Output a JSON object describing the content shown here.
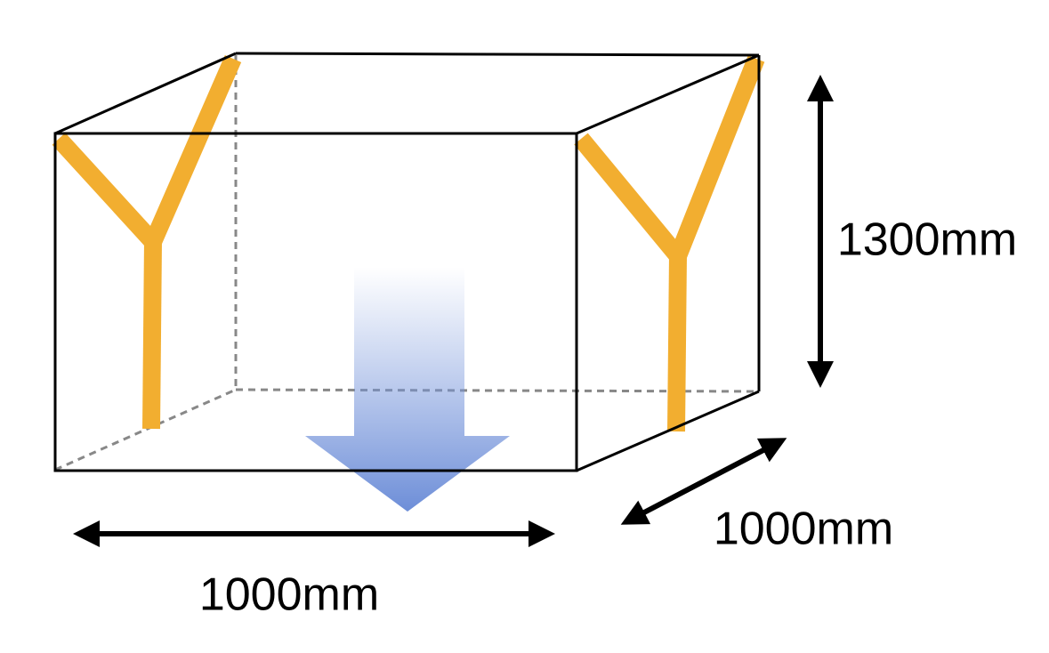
{
  "dimensions": {
    "height": {
      "label": "1300mm"
    },
    "width": {
      "label": "1000mm"
    },
    "depth": {
      "label": "1000mm"
    }
  }
}
